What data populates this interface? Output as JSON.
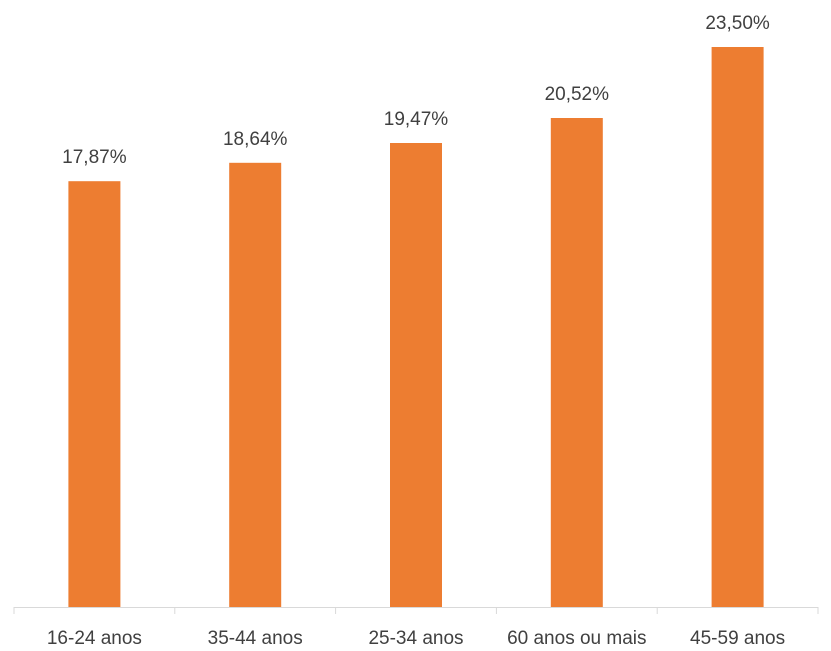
{
  "chart_data": {
    "type": "bar",
    "title": "",
    "xlabel": "",
    "ylabel": "",
    "categories": [
      "16-24 anos",
      "35-44 anos",
      "25-34 anos",
      "60 anos ou mais",
      "45-59 anos"
    ],
    "values": [
      17.87,
      18.64,
      19.47,
      20.52,
      23.5
    ],
    "value_labels": [
      "17,87%",
      "18,64%",
      "19,47%",
      "20,52%",
      "23,50%"
    ],
    "ylim": [
      0,
      23.5
    ],
    "grid": false,
    "legend": "none",
    "bar_color": "#ED7D31",
    "axis_color": "#D9D9D9",
    "text_color": "#404040"
  }
}
